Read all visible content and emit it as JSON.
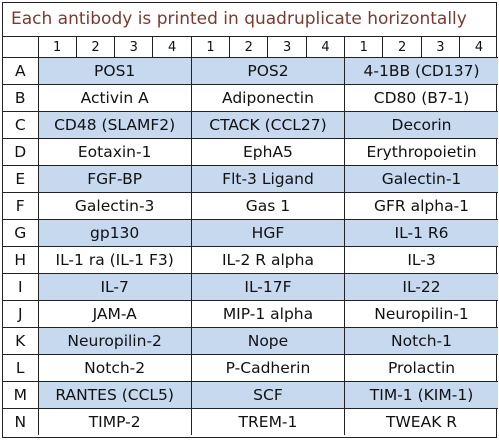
{
  "title": "Each antibody is printed in quadruplicate horizontally",
  "column_numbers": [
    "1",
    "2",
    "3",
    "4",
    "1",
    "2",
    "3",
    "4",
    "1",
    "2",
    "3",
    "4"
  ],
  "rows": [
    {
      "letter": "A",
      "shaded": true,
      "cells": [
        "POS1",
        "POS2",
        "4-1BB (CD137)"
      ]
    },
    {
      "letter": "B",
      "shaded": false,
      "cells": [
        "Activin A",
        "Adiponectin",
        "CD80 (B7-1)"
      ]
    },
    {
      "letter": "C",
      "shaded": true,
      "cells": [
        "CD48 (SLAMF2)",
        "CTACK (CCL27)",
        "Decorin"
      ]
    },
    {
      "letter": "D",
      "shaded": false,
      "cells": [
        "Eotaxin-1",
        "EphA5",
        "Erythropoietin"
      ]
    },
    {
      "letter": "E",
      "shaded": true,
      "cells": [
        "FGF-BP",
        "Flt-3 Ligand",
        "Galectin-1"
      ]
    },
    {
      "letter": "F",
      "shaded": false,
      "cells": [
        "Galectin-3",
        "Gas 1",
        "GFR alpha-1"
      ]
    },
    {
      "letter": "G",
      "shaded": true,
      "cells": [
        "gp130",
        "HGF",
        "IL-1 R6"
      ]
    },
    {
      "letter": "H",
      "shaded": false,
      "cells": [
        "IL-1 ra (IL-1 F3)",
        "IL-2 R alpha",
        "IL-3"
      ]
    },
    {
      "letter": "I",
      "shaded": true,
      "cells": [
        "IL-7",
        "IL-17F",
        "IL-22"
      ]
    },
    {
      "letter": "J",
      "shaded": false,
      "cells": [
        "JAM-A",
        "MIP-1 alpha",
        "Neuropilin-1"
      ]
    },
    {
      "letter": "K",
      "shaded": true,
      "cells": [
        "Neuropilin-2",
        "Nope",
        "Notch-1"
      ]
    },
    {
      "letter": "L",
      "shaded": false,
      "cells": [
        "Notch-2",
        "P-Cadherin",
        "Prolactin"
      ]
    },
    {
      "letter": "M",
      "shaded": true,
      "cells": [
        "RANTES (CCL5)",
        "SCF",
        "TIM-1 (KIM-1)"
      ]
    },
    {
      "letter": "N",
      "shaded": false,
      "cells": [
        "TIMP-2",
        "TREM-1",
        "TWEAK R"
      ]
    }
  ],
  "colors": {
    "shade": "#c6d9ef",
    "title_text": "#7a3b2e",
    "border": "#222222"
  }
}
